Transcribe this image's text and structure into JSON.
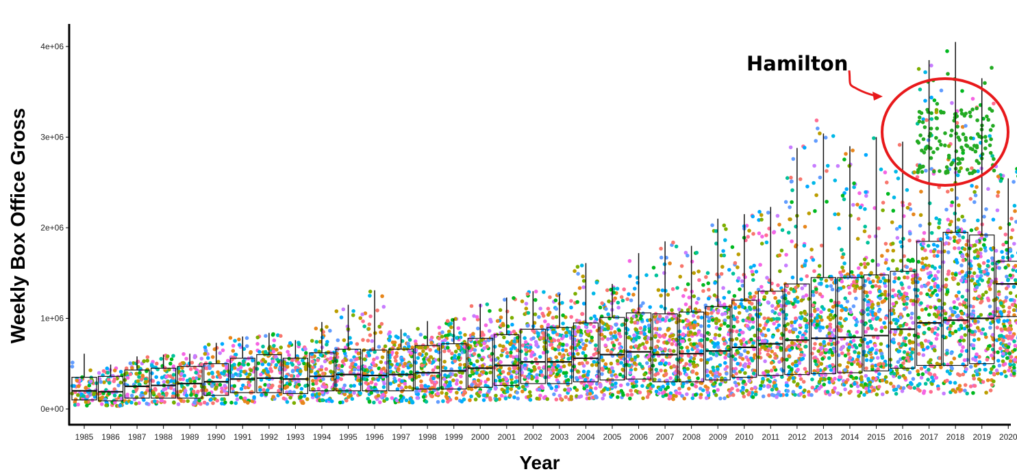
{
  "chart_data": {
    "type": "scatter",
    "subtype": "jitter-boxplot",
    "title": "",
    "xlabel": "Year",
    "ylabel": "Weekly Box Office Gross",
    "ylim": [
      0,
      4200000
    ],
    "y_ticks": [
      0,
      1000000,
      2000000,
      3000000,
      4000000
    ],
    "y_tick_labels": [
      "0e+00",
      "1e+06",
      "2e+06",
      "3e+06",
      "4e+06"
    ],
    "categories": [
      "1985",
      "1986",
      "1987",
      "1988",
      "1989",
      "1990",
      "1991",
      "1992",
      "1993",
      "1994",
      "1995",
      "1996",
      "1997",
      "1998",
      "1999",
      "2000",
      "2001",
      "2002",
      "2003",
      "2004",
      "2005",
      "2006",
      "2007",
      "2008",
      "2009",
      "2010",
      "2011",
      "2012",
      "2013",
      "2014",
      "2015",
      "2016",
      "2017",
      "2018",
      "2019",
      "2020"
    ],
    "box_q1": [
      100000,
      90000,
      120000,
      120000,
      120000,
      150000,
      180000,
      180000,
      170000,
      200000,
      200000,
      200000,
      200000,
      220000,
      220000,
      240000,
      260000,
      280000,
      280000,
      300000,
      320000,
      330000,
      300000,
      300000,
      320000,
      350000,
      370000,
      380000,
      390000,
      400000,
      420000,
      450000,
      480000,
      480000,
      500000,
      1020000
    ],
    "box_median": [
      200000,
      190000,
      250000,
      260000,
      280000,
      300000,
      330000,
      340000,
      330000,
      360000,
      380000,
      370000,
      380000,
      400000,
      420000,
      450000,
      480000,
      520000,
      520000,
      560000,
      600000,
      630000,
      600000,
      610000,
      640000,
      680000,
      720000,
      760000,
      780000,
      790000,
      810000,
      880000,
      950000,
      980000,
      1000000,
      1380000
    ],
    "box_q3": [
      350000,
      360000,
      430000,
      450000,
      470000,
      500000,
      560000,
      600000,
      560000,
      620000,
      660000,
      650000,
      660000,
      700000,
      720000,
      780000,
      820000,
      880000,
      900000,
      950000,
      1010000,
      1060000,
      1050000,
      1070000,
      1130000,
      1200000,
      1300000,
      1380000,
      1450000,
      1450000,
      1480000,
      1520000,
      1850000,
      1950000,
      1920000,
      1630000
    ],
    "point_max": [
      610000,
      490000,
      580000,
      600000,
      610000,
      730000,
      800000,
      840000,
      760000,
      960000,
      1150000,
      1310000,
      880000,
      970000,
      1000000,
      1160000,
      1230000,
      1300000,
      1270000,
      1610000,
      1380000,
      1720000,
      1850000,
      1800000,
      2100000,
      2150000,
      2230000,
      2950000,
      3200000,
      2900000,
      3000000,
      2950000,
      3850000,
      4050000,
      3650000,
      2800000
    ],
    "highlight": {
      "label": "Hamilton",
      "years": [
        "2017",
        "2018",
        "2019"
      ],
      "approx_range": [
        2600000,
        3800000
      ],
      "color": "#22aa22"
    }
  },
  "annotation": {
    "text": "Hamilton",
    "circle_color": "#e8191b",
    "arrow_color": "#e8191b"
  },
  "palette": [
    "#F8766D",
    "#E7861B",
    "#BB9D00",
    "#7CAE00",
    "#00B81F",
    "#00C19A",
    "#00B8E7",
    "#619CFF",
    "#C77CFF",
    "#F564E3",
    "#FF6C91",
    "#00A9FF"
  ]
}
